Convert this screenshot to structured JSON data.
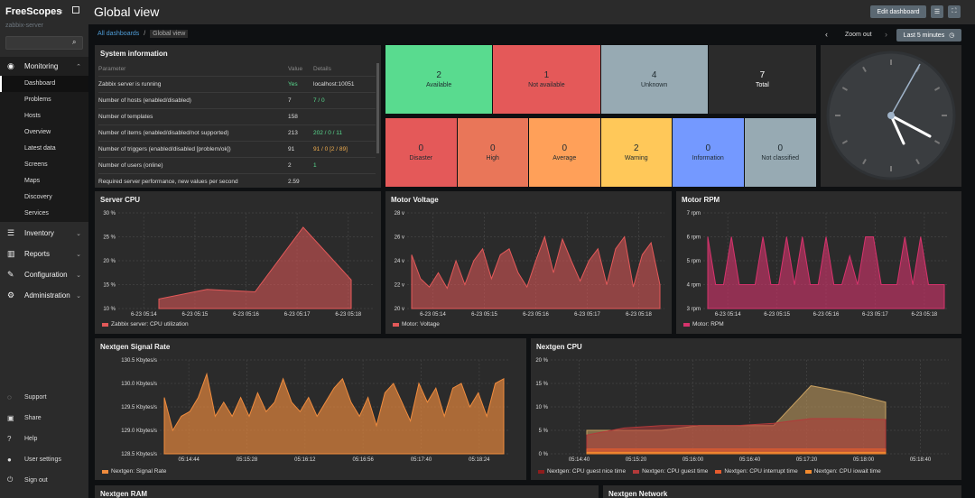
{
  "app": {
    "name": "FreeScopes",
    "server": "zabbix-server"
  },
  "sidebar": {
    "monitoring": {
      "label": "Monitoring",
      "items": [
        "Dashboard",
        "Problems",
        "Hosts",
        "Overview",
        "Latest data",
        "Screens",
        "Maps",
        "Discovery",
        "Services"
      ]
    },
    "sections": [
      "Inventory",
      "Reports",
      "Configuration",
      "Administration"
    ],
    "footer": [
      "Support",
      "Share",
      "Help",
      "User settings",
      "Sign out"
    ]
  },
  "header": {
    "title": "Global view",
    "edit_label": "Edit dashboard"
  },
  "breadcrumb": {
    "root": "All dashboards",
    "sep": "/",
    "current": "Global view"
  },
  "time": {
    "zoom_out": "Zoom out",
    "range": "Last 5 minutes"
  },
  "sysinfo": {
    "title": "System information",
    "cols": [
      "Parameter",
      "Value",
      "Details"
    ],
    "rows": [
      {
        "p": "Zabbix server is running",
        "v": "Yes",
        "d": "localhost:10051"
      },
      {
        "p": "Number of hosts (enabled/disabled)",
        "v": "7",
        "d": "7 / 0"
      },
      {
        "p": "Number of templates",
        "v": "158",
        "d": ""
      },
      {
        "p": "Number of items (enabled/disabled/not supported)",
        "v": "213",
        "d": "202 / 0 / 11"
      },
      {
        "p": "Number of triggers (enabled/disabled [problem/ok])",
        "v": "91",
        "d": "91 / 0 [2 / 89]"
      },
      {
        "p": "Number of users (online)",
        "v": "2",
        "d": "1"
      },
      {
        "p": "Required server performance, new values per second",
        "v": "2.59",
        "d": ""
      }
    ]
  },
  "hosts": [
    {
      "n": "2",
      "l": "Available",
      "c": "#59db8f"
    },
    {
      "n": "1",
      "l": "Not available",
      "c": "#e45959"
    },
    {
      "n": "4",
      "l": "Unknown",
      "c": "#97aab3"
    },
    {
      "n": "7",
      "l": "Total",
      "c": "#2b2b2b"
    }
  ],
  "problems": [
    {
      "n": "0",
      "l": "Disaster",
      "c": "#e45959"
    },
    {
      "n": "0",
      "l": "High",
      "c": "#e97659"
    },
    {
      "n": "0",
      "l": "Average",
      "c": "#ffa059"
    },
    {
      "n": "2",
      "l": "Warning",
      "c": "#ffc859"
    },
    {
      "n": "0",
      "l": "Information",
      "c": "#7499ff"
    },
    {
      "n": "0",
      "l": "Not classified",
      "c": "#97aab3"
    }
  ],
  "charts": {
    "server_cpu": {
      "title": "Server CPU",
      "legend": "Zabbix server: CPU utilization",
      "color": "#e45959"
    },
    "motor_voltage": {
      "title": "Motor Voltage",
      "legend": "Motor: Voltage",
      "color": "#e45959"
    },
    "motor_rpm": {
      "title": "Motor RPM",
      "legend": "Motor: RPM",
      "color": "#d6336c"
    },
    "signal_rate": {
      "title": "Nextgen Signal Rate",
      "legend": "Nextgen: Signal Rate",
      "color": "#f08c3e"
    },
    "nextgen_cpu": {
      "title": "Nextgen CPU",
      "legends": [
        "Nextgen: CPU guest nice time",
        "Nextgen: CPU guest time",
        "Nextgen: CPU interrupt time",
        "Nextgen: CPU iowait time"
      ]
    },
    "ram": {
      "title": "Nextgen RAM"
    },
    "network": {
      "title": "Nextgen Network"
    }
  },
  "chart_data": [
    {
      "type": "area",
      "title": "Server CPU",
      "y_ticks": [
        "30 %",
        "25 %",
        "20 %",
        "15 %",
        "10 %"
      ],
      "ylim": [
        10,
        30
      ],
      "x_ticks": [
        "6-23 05:14",
        "6-23 05:15",
        "6-23 05:16",
        "6-23 05:17",
        "6-23 05:18"
      ],
      "series": [
        {
          "name": "Zabbix server: CPU utilization",
          "values": [
            12,
            14,
            13.5,
            27,
            16
          ]
        }
      ]
    },
    {
      "type": "area",
      "title": "Motor Voltage",
      "y_ticks": [
        "28 v",
        "26 v",
        "24 v",
        "22 v",
        "20 v"
      ],
      "ylim": [
        20,
        28
      ],
      "x_ticks": [
        "6-23 05:14",
        "6-23 05:15",
        "6-23 05:16",
        "6-23 05:17",
        "6-23 05:18"
      ],
      "series": [
        {
          "name": "Motor: Voltage",
          "values": [
            24.5,
            22.5,
            21.8,
            23,
            21.7,
            24,
            22,
            24,
            25,
            22.5,
            24.5,
            25,
            23,
            21.8,
            24,
            26,
            23,
            25.8,
            24,
            22.3,
            24,
            25,
            22,
            25,
            26,
            21.8,
            24.5,
            25.5,
            22
          ]
        }
      ]
    },
    {
      "type": "area",
      "title": "Motor RPM",
      "y_ticks": [
        "7 rpm",
        "6 rpm",
        "5 rpm",
        "4 rpm",
        "3 rpm"
      ],
      "ylim": [
        3,
        7
      ],
      "x_ticks": [
        "6-23 05:14",
        "6-23 05:15",
        "6-23 05:16",
        "6-23 05:17",
        "6-23 05:18"
      ],
      "series": [
        {
          "name": "Motor: RPM",
          "values": [
            6,
            4,
            4,
            6,
            4,
            4,
            4,
            6,
            4,
            4,
            6,
            4,
            6,
            4,
            4,
            6,
            4,
            4,
            5.2,
            4,
            6,
            6,
            4,
            4,
            4,
            6,
            4,
            6,
            4,
            4,
            4
          ]
        }
      ]
    },
    {
      "type": "area",
      "title": "Nextgen Signal Rate",
      "y_ticks": [
        "130.5 Kbytes/s",
        "130.0 Kbytes/s",
        "129.5 Kbytes/s",
        "129.0 Kbytes/s",
        "128.5 Kbytes/s"
      ],
      "ylim": [
        128.5,
        130.5
      ],
      "x_ticks": [
        "05:14:44",
        "05:15:28",
        "05:16:12",
        "05:16:56",
        "05:17:40",
        "05:18:24"
      ],
      "series": [
        {
          "name": "Nextgen: Signal Rate",
          "values": [
            129.7,
            129.0,
            129.3,
            129.4,
            129.7,
            130.2,
            129.3,
            129.6,
            129.3,
            129.7,
            129.3,
            129.8,
            129.4,
            129.6,
            130.1,
            129.6,
            129.4,
            129.7,
            129.3,
            129.6,
            129.9,
            130.1,
            129.6,
            129.3,
            129.7,
            129.1,
            129.8,
            130.0,
            129.6,
            129.2,
            130.0,
            129.6,
            129.9,
            129.3,
            129.9,
            130.0,
            129.5,
            129.8,
            129.3,
            130.0,
            130.1
          ]
        }
      ]
    },
    {
      "type": "area",
      "title": "Nextgen CPU",
      "y_ticks": [
        "20 %",
        "15 %",
        "10 %",
        "5 %",
        "0 %"
      ],
      "ylim": [
        0,
        20
      ],
      "x_ticks": [
        "05:14:40",
        "05:15:20",
        "05:16:00",
        "05:16:40",
        "05:17:20",
        "05:18:00",
        "05:18:40"
      ],
      "series": [
        {
          "name": "Nextgen: CPU guest nice time",
          "values": [
            5,
            5,
            5,
            6,
            6,
            6,
            14.5,
            13,
            11
          ]
        },
        {
          "name": "Nextgen: CPU guest time",
          "values": [
            4,
            5.5,
            6,
            6,
            6,
            6.5,
            7.5,
            7.5,
            7.3
          ]
        },
        {
          "name": "Nextgen: CPU interrupt time",
          "values": [
            1,
            1,
            1,
            1,
            1,
            1,
            1,
            1,
            1
          ]
        },
        {
          "name": "Nextgen: CPU iowait time",
          "values": [
            0.3,
            0.3,
            0.3,
            0.3,
            0.3,
            0.3,
            0.3,
            0.3,
            0.3
          ]
        }
      ]
    }
  ]
}
